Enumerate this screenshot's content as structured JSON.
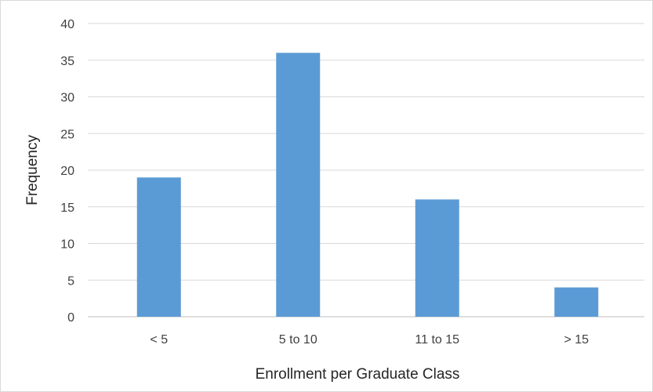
{
  "chart_data": {
    "type": "bar",
    "title": "",
    "xlabel": "Enrollment per Graduate Class",
    "ylabel": "Frequency",
    "categories": [
      "< 5",
      "5 to 10",
      "11 to 15",
      "> 15"
    ],
    "values": [
      19,
      36,
      16,
      4
    ],
    "ylim": [
      0,
      40
    ],
    "yticks": [
      0,
      5,
      10,
      15,
      20,
      25,
      30,
      35,
      40
    ],
    "ytick_labels": [
      "0",
      "5",
      "10",
      "15",
      "20",
      "25",
      "30",
      "35",
      "40"
    ],
    "grid": true,
    "legend": "none",
    "colors": {
      "bar": "#5b9bd5",
      "grid": "#d9d9d9",
      "axis": "#bfbfbf",
      "text": "#404040"
    }
  }
}
